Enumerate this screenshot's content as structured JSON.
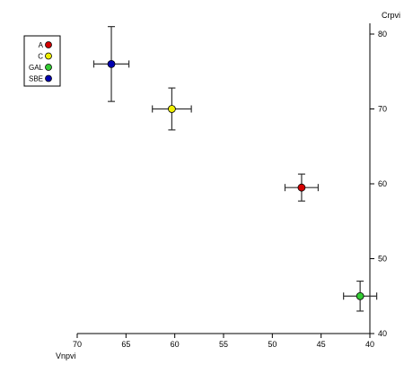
{
  "chart_data": {
    "type": "scatter",
    "title": "",
    "xlabel": "Vnpvi",
    "ylabel": "Crpvi",
    "xlim": [
      70,
      40
    ],
    "ylim": [
      40,
      80
    ],
    "x_ticks": [
      "70",
      "65",
      "60",
      "55",
      "50",
      "45",
      "40"
    ],
    "y_ticks": [
      "40",
      "50",
      "60",
      "70",
      "80"
    ],
    "x_axis_position": "bottom",
    "y_axis_position": "right",
    "grid": false,
    "legend_position": "top-left",
    "series": [
      {
        "name": "A",
        "color": "#d40000",
        "x": 47.0,
        "y": 59.5,
        "x_err": 1.7,
        "y_err": 1.8
      },
      {
        "name": "C",
        "color": "#f0f000",
        "x": 60.3,
        "y": 70.0,
        "x_err": 2.0,
        "y_err": 2.8
      },
      {
        "name": "GAL",
        "color": "#33cc33",
        "x": 41.0,
        "y": 45.0,
        "x_err": 1.7,
        "y_err": 2.0
      },
      {
        "name": "SBE",
        "color": "#0000b0",
        "x": 66.5,
        "y": 76.0,
        "x_err": 1.8,
        "y_err": 5.0
      }
    ]
  }
}
